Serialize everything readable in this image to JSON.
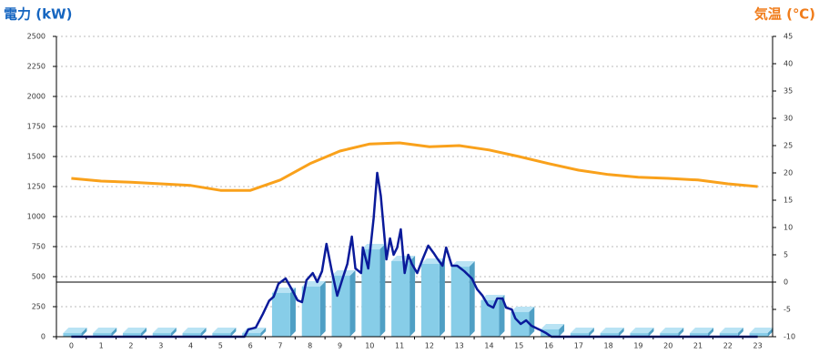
{
  "chart_data": {
    "type": "bar-line",
    "ylabel": "電力 (kW)",
    "y2label": "気温 (℃)",
    "categories": [
      "0",
      "1",
      "2",
      "3",
      "4",
      "5",
      "6",
      "7",
      "8",
      "9",
      "10",
      "11",
      "12",
      "13",
      "14",
      "15",
      "16",
      "17",
      "18",
      "19",
      "20",
      "21",
      "22",
      "23"
    ],
    "ylim": [
      0,
      2500
    ],
    "yticks": [
      0,
      250,
      500,
      750,
      1000,
      1250,
      1500,
      1750,
      2000,
      2250,
      2500
    ],
    "y2lim": [
      -10,
      45
    ],
    "y2ticks": [
      -10,
      -5,
      0,
      5,
      10,
      15,
      20,
      25,
      30,
      35,
      40,
      45
    ],
    "grid": true,
    "series": [
      {
        "type": "bar",
        "color": "#87cde8",
        "values": [
          30,
          30,
          30,
          30,
          30,
          30,
          30,
          364,
          417,
          508,
          727,
          629,
          606,
          583,
          303,
          205,
          61,
          30,
          30,
          30,
          30,
          30,
          30,
          30
        ]
      },
      {
        "type": "line",
        "color": "#0a1a9a",
        "x": [
          0,
          5.8,
          5.93,
          6.18,
          6.42,
          6.63,
          6.78,
          6.94,
          7.18,
          7.39,
          7.58,
          7.73,
          7.88,
          8.09,
          8.24,
          8.4,
          8.55,
          8.73,
          8.91,
          9.1,
          9.25,
          9.4,
          9.52,
          9.71,
          9.77,
          9.95,
          10.13,
          10.25,
          10.37,
          10.56,
          10.68,
          10.8,
          10.92,
          11.04,
          11.17,
          11.29,
          11.41,
          11.59,
          11.77,
          11.96,
          12.14,
          12.26,
          12.44,
          12.56,
          12.75,
          12.93,
          13.17,
          13.42,
          13.6,
          13.78,
          13.96,
          14.14,
          14.27,
          14.45,
          14.57,
          14.76,
          14.88,
          15.06,
          15.24,
          15.42,
          15.67,
          15.91,
          16.09,
          23
        ],
        "values": [
          0,
          0,
          60,
          76,
          190,
          300,
          333,
          440,
          485,
          394,
          303,
          288,
          470,
          530,
          455,
          545,
          773,
          545,
          341,
          492,
          606,
          833,
          568,
          530,
          742,
          568,
          985,
          1364,
          1174,
          644,
          818,
          682,
          742,
          894,
          530,
          682,
          606,
          530,
          644,
          758,
          697,
          652,
          591,
          742,
          591,
          591,
          545,
          485,
          394,
          341,
          265,
          242,
          318,
          318,
          242,
          227,
          152,
          106,
          136,
          91,
          61,
          30,
          0,
          0
        ]
      },
      {
        "type": "line",
        "axis": "y2",
        "color": "#f9a11b",
        "values": [
          19,
          18.5,
          18.3,
          18,
          17.7,
          16.8,
          16.8,
          18.7,
          21.7,
          24,
          25.3,
          25.5,
          24.8,
          25,
          24.2,
          23,
          21.7,
          20.5,
          19.7,
          19.2,
          19,
          18.7,
          18,
          17.5
        ]
      }
    ]
  }
}
